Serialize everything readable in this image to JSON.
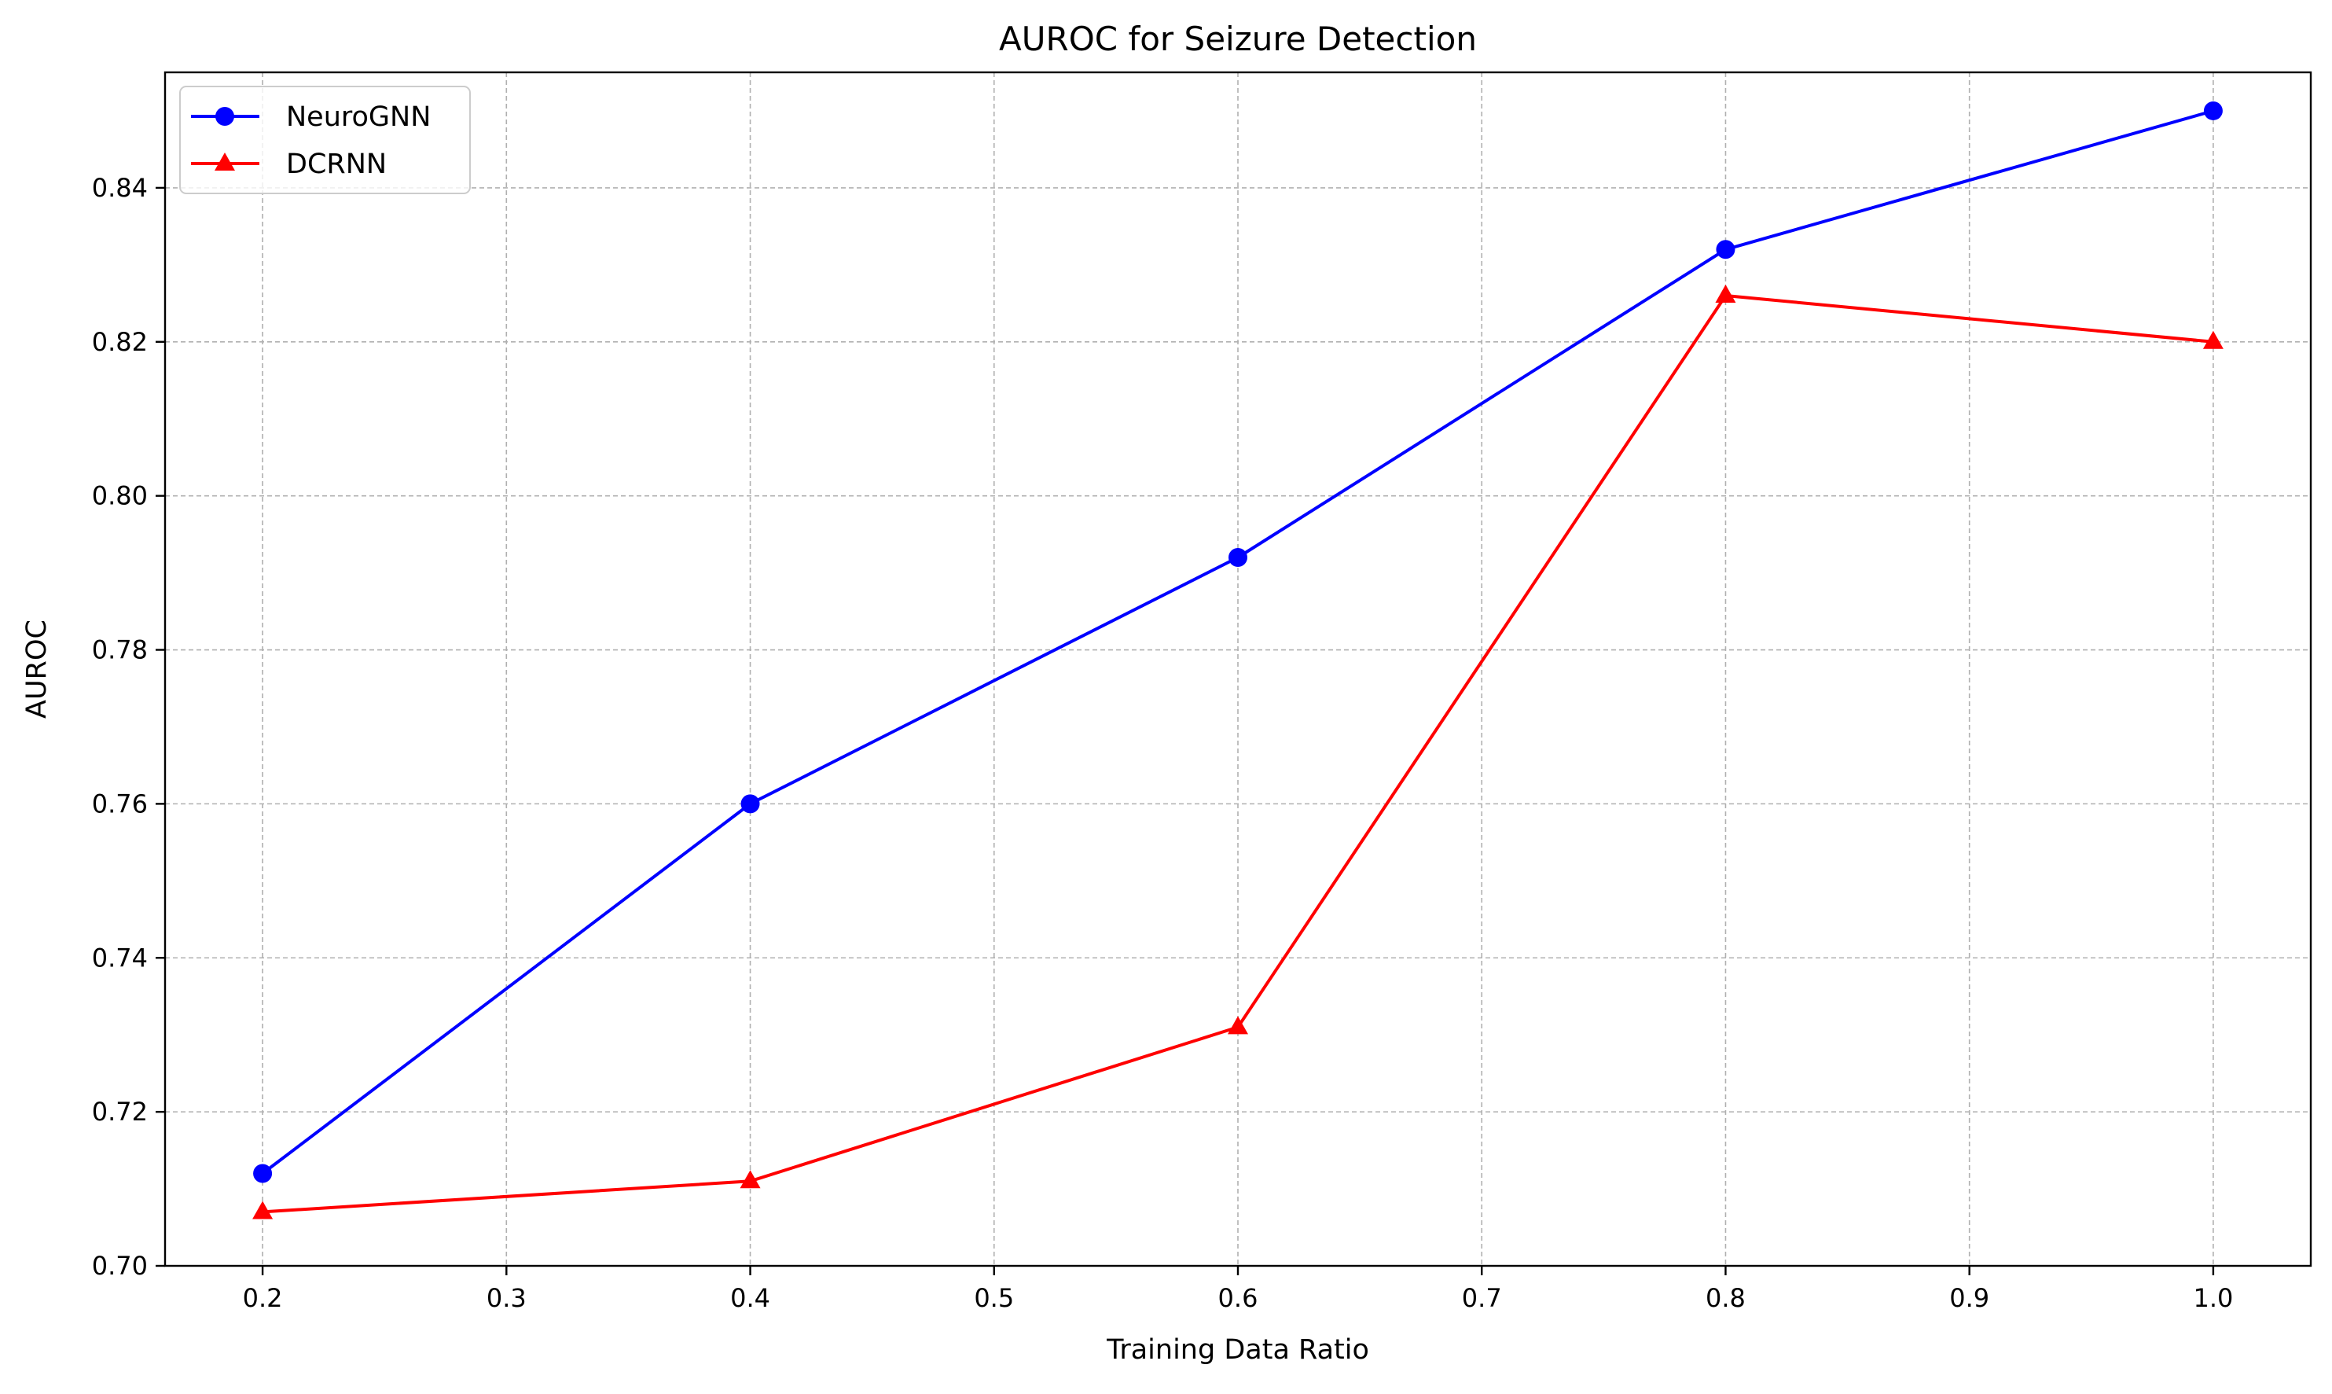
{
  "chart_data": {
    "type": "line",
    "title": "AUROC for Seizure Detection",
    "xlabel": "Training Data Ratio",
    "ylabel": "AUROC",
    "xlim": [
      0.16,
      1.04
    ],
    "ylim": [
      0.7,
      0.855
    ],
    "xticks": [
      0.2,
      0.3,
      0.4,
      0.5,
      0.6,
      0.7,
      0.8,
      0.9,
      1.0
    ],
    "xtick_labels": [
      "0.2",
      "0.3",
      "0.4",
      "0.5",
      "0.6",
      "0.7",
      "0.8",
      "0.9",
      "1.0"
    ],
    "yticks": [
      0.7,
      0.72,
      0.74,
      0.76,
      0.78,
      0.8,
      0.82,
      0.84
    ],
    "ytick_labels": [
      "0.70",
      "0.72",
      "0.74",
      "0.76",
      "0.78",
      "0.80",
      "0.82",
      "0.84"
    ],
    "grid": true,
    "legend_position": "top-left",
    "x": [
      0.2,
      0.4,
      0.6,
      0.8,
      1.0
    ],
    "series": [
      {
        "name": "NeuroGNN",
        "values": [
          0.712,
          0.76,
          0.792,
          0.832,
          0.85
        ],
        "color": "#0000ff",
        "marker": "circle"
      },
      {
        "name": "DCRNN",
        "values": [
          0.707,
          0.711,
          0.731,
          0.826,
          0.82
        ],
        "color": "#ff0000",
        "marker": "triangle"
      }
    ]
  }
}
